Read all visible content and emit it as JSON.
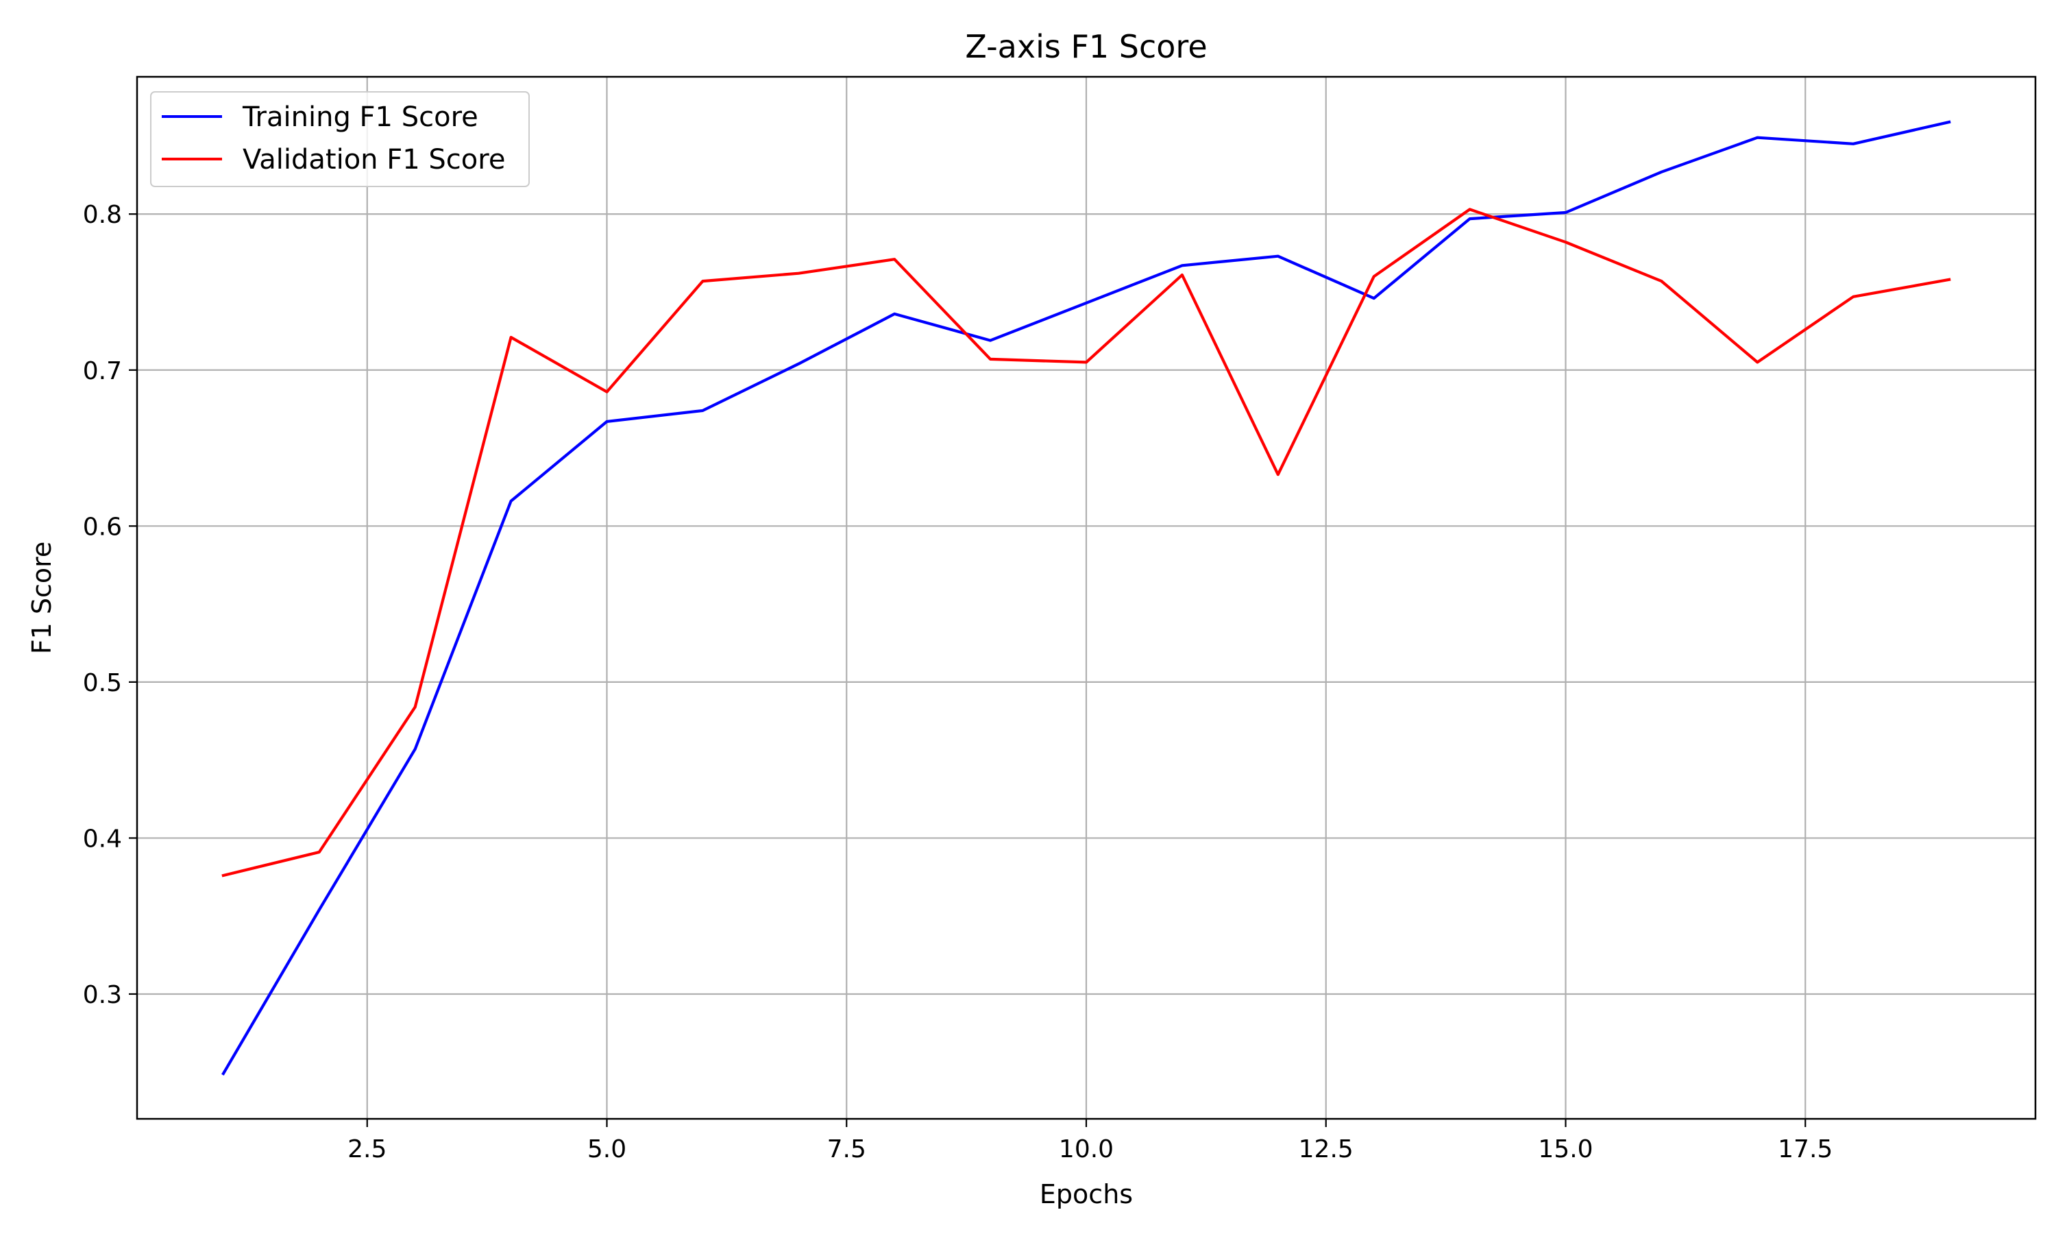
{
  "chart_data": {
    "type": "line",
    "title": "Z-axis F1 Score",
    "xlabel": "Epochs",
    "ylabel": "F1 Score",
    "xlim": [
      0.1,
      19.9
    ],
    "ylim": [
      0.22,
      0.888
    ],
    "x_ticks": [
      2.5,
      5.0,
      7.5,
      10.0,
      12.5,
      15.0,
      17.5
    ],
    "x_tick_labels": [
      "2.5",
      "5.0",
      "7.5",
      "10.0",
      "12.5",
      "15.0",
      "17.5"
    ],
    "y_ticks": [
      0.3,
      0.4,
      0.5,
      0.6,
      0.7,
      0.8
    ],
    "y_tick_labels": [
      "0.3",
      "0.4",
      "0.5",
      "0.6",
      "0.7",
      "0.8"
    ],
    "grid": true,
    "legend_position": "upper-left",
    "x": [
      1,
      2,
      3,
      4,
      5,
      6,
      7,
      8,
      9,
      10,
      11,
      12,
      13,
      14,
      15,
      16,
      17,
      18,
      19
    ],
    "series": [
      {
        "name": "Training F1 Score",
        "color": "#0000ff",
        "values": [
          0.249,
          0.354,
          0.457,
          0.616,
          0.667,
          0.674,
          0.704,
          0.736,
          0.719,
          0.743,
          0.767,
          0.773,
          0.746,
          0.797,
          0.801,
          0.827,
          0.849,
          0.845,
          0.859
        ]
      },
      {
        "name": "Validation F1 Score",
        "color": "#ff0000",
        "values": [
          0.376,
          0.391,
          0.484,
          0.721,
          0.686,
          0.757,
          0.762,
          0.771,
          0.707,
          0.705,
          0.761,
          0.633,
          0.76,
          0.803,
          0.782,
          0.757,
          0.705,
          0.747,
          0.758
        ]
      }
    ]
  }
}
